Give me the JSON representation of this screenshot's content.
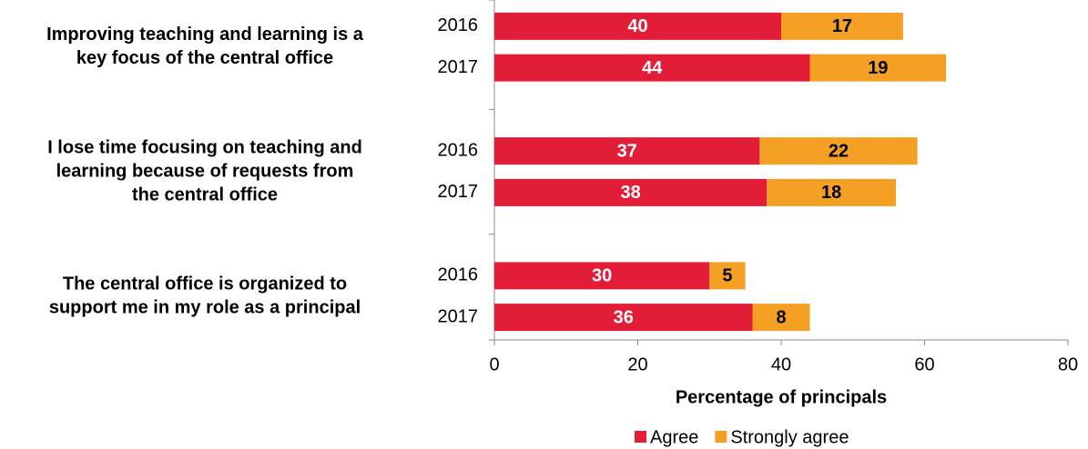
{
  "chart_data": {
    "type": "stacked-bar-horizontal",
    "x_axis_label": "Percentage of principals",
    "groups": [
      {
        "label": [
          "Improving teaching and learning is a",
          "key focus of the central office"
        ]
      },
      {
        "label": [
          "I lose time focusing on teaching and",
          "learning because of requests from",
          "the central office"
        ]
      },
      {
        "label": [
          "The central office is organized to",
          "support me in my role as a principal"
        ]
      }
    ],
    "categories": [
      "2016",
      "2017",
      "2016",
      "2017",
      "2016",
      "2017"
    ],
    "series": [
      {
        "name": "Agree",
        "color": "#e31d38",
        "label_color": "#ffffff",
        "values": [
          40,
          44,
          37,
          38,
          30,
          36
        ]
      },
      {
        "name": "Strongly agree",
        "color": "#f4a024",
        "label_color": "#000000",
        "values": [
          17,
          19,
          22,
          18,
          5,
          8
        ]
      }
    ],
    "xlim": [
      0,
      80
    ],
    "xticks": [
      0,
      20,
      40,
      60,
      80
    ],
    "grid": false,
    "legend": "bottom"
  }
}
